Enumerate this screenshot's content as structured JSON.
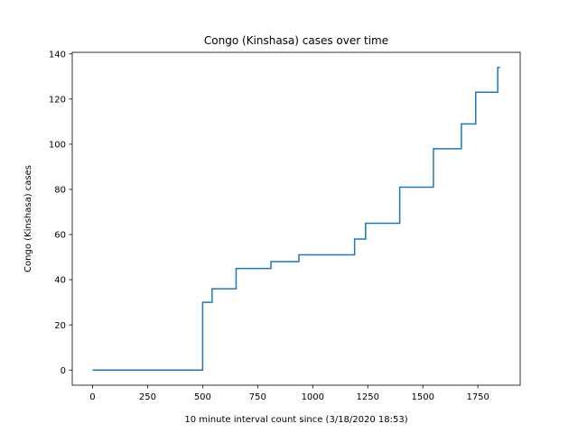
{
  "chart_data": {
    "type": "line",
    "title": "Congo (Kinshasa) cases over time",
    "xlabel": "10 minute interval count since (3/18/2020 18:53)",
    "ylabel": "Congo (Kinshasa) cases",
    "xlim": [
      -92,
      1942
    ],
    "ylim": [
      -6.7,
      140.7
    ],
    "x_ticks": [
      0,
      250,
      500,
      750,
      1000,
      1250,
      1500,
      1750
    ],
    "y_ticks": [
      0,
      20,
      40,
      60,
      80,
      100,
      120,
      140
    ],
    "grid": false,
    "legend": "none",
    "series": [
      {
        "color": "#1f77b4",
        "step": "post",
        "x": [
          0,
          500,
          543,
          652,
          810,
          937,
          1190,
          1240,
          1395,
          1548,
          1675,
          1740,
          1840,
          1850
        ],
        "y": [
          0,
          30,
          36,
          45,
          48,
          51,
          58,
          65,
          81,
          98,
          109,
          123,
          134,
          134
        ]
      }
    ]
  }
}
